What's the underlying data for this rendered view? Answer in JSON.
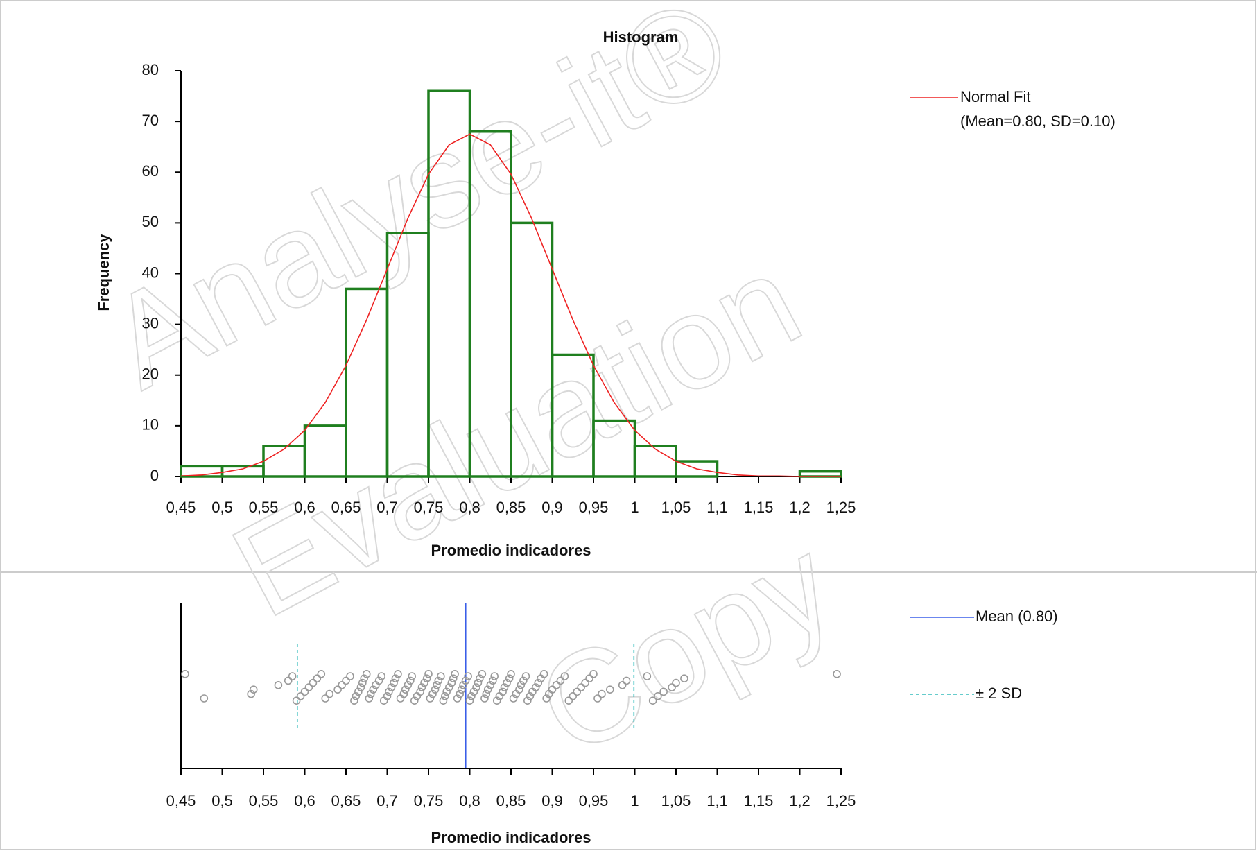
{
  "chart_data": [
    {
      "type": "histogram",
      "title": "Histogram",
      "ylabel": "Frequency",
      "xlabel": "Promedio indicadores",
      "bins": [
        0.45,
        0.5,
        0.55,
        0.6,
        0.65,
        0.7,
        0.75,
        0.8,
        0.85,
        0.9,
        0.95,
        1,
        1.05,
        1.1,
        1.15,
        1.2,
        1.25
      ],
      "counts": [
        2,
        2,
        6,
        10,
        37,
        48,
        76,
        68,
        50,
        24,
        11,
        6,
        3,
        0,
        0,
        1
      ],
      "color": "#1f7f1f",
      "xlim": [
        0.45,
        1.25
      ],
      "xticks": [
        {
          "value": 0.45,
          "label": "0,45"
        },
        {
          "value": 0.5,
          "label": "0,5"
        },
        {
          "value": 0.55,
          "label": "0,55"
        },
        {
          "value": 0.6,
          "label": "0,6"
        },
        {
          "value": 0.65,
          "label": "0,65"
        },
        {
          "value": 0.7,
          "label": "0,7"
        },
        {
          "value": 0.75,
          "label": "0,75"
        },
        {
          "value": 0.8,
          "label": "0,8"
        },
        {
          "value": 0.85,
          "label": "0,85"
        },
        {
          "value": 0.9,
          "label": "0,9"
        },
        {
          "value": 0.95,
          "label": "0,95"
        },
        1,
        {
          "value": 1.05,
          "label": "1,05"
        },
        {
          "value": 1.1,
          "label": "1,1"
        },
        {
          "value": 1.15,
          "label": "1,15"
        },
        {
          "value": 1.2,
          "label": "1,2"
        },
        {
          "value": 1.25,
          "label": "1,25"
        }
      ],
      "ylim": [
        0,
        80
      ],
      "yticks": [
        0,
        10,
        20,
        30,
        40,
        50,
        60,
        70,
        80
      ],
      "normal_fit": {
        "name": "Normal Fit",
        "label": "(Mean=0.80, SD=0.10)",
        "color": "#ee2222",
        "x": [
          0.45,
          0.475,
          0.5,
          0.525,
          0.55,
          0.575,
          0.6,
          0.625,
          0.65,
          0.675,
          0.7,
          0.725,
          0.75,
          0.775,
          0.8,
          0.825,
          0.85,
          0.875,
          0.9,
          0.925,
          0.95,
          0.975,
          1,
          1.025,
          1.05,
          1.075,
          1.1,
          1.125,
          1.15,
          1.175,
          1.2,
          1.225,
          1.25
        ],
        "values": [
          0.1,
          0.3,
          0.8,
          1.5,
          3.0,
          5.4,
          9.1,
          14.6,
          21.9,
          30.9,
          40.9,
          50.9,
          59.6,
          65.4,
          67.5,
          65.4,
          59.6,
          50.9,
          40.9,
          30.9,
          21.9,
          14.6,
          9.1,
          5.4,
          3.0,
          1.5,
          0.8,
          0.3,
          0.1,
          0.1,
          0,
          0,
          0
        ]
      }
    },
    {
      "type": "dot",
      "xlabel": "Promedio indicadores",
      "x": [
        0.455,
        0.478,
        0.535,
        0.538,
        0.568,
        0.58,
        0.585,
        0.59,
        0.595,
        0.6,
        0.605,
        0.61,
        0.615,
        0.62,
        0.625,
        0.63,
        0.64,
        0.645,
        0.65,
        0.655,
        0.66,
        0.662,
        0.665,
        0.668,
        0.67,
        0.672,
        0.675,
        0.678,
        0.68,
        0.683,
        0.686,
        0.69,
        0.693,
        0.696,
        0.7,
        0.702,
        0.705,
        0.708,
        0.71,
        0.713,
        0.716,
        0.72,
        0.722,
        0.725,
        0.728,
        0.73,
        0.733,
        0.736,
        0.74,
        0.742,
        0.745,
        0.748,
        0.75,
        0.752,
        0.755,
        0.758,
        0.76,
        0.762,
        0.765,
        0.768,
        0.77,
        0.772,
        0.775,
        0.778,
        0.78,
        0.782,
        0.785,
        0.788,
        0.79,
        0.792,
        0.795,
        0.798,
        0.8,
        0.802,
        0.805,
        0.808,
        0.81,
        0.812,
        0.815,
        0.818,
        0.82,
        0.822,
        0.825,
        0.828,
        0.83,
        0.833,
        0.836,
        0.84,
        0.842,
        0.845,
        0.848,
        0.85,
        0.853,
        0.856,
        0.86,
        0.862,
        0.865,
        0.868,
        0.87,
        0.873,
        0.876,
        0.88,
        0.883,
        0.886,
        0.89,
        0.893,
        0.896,
        0.9,
        0.905,
        0.91,
        0.915,
        0.92,
        0.925,
        0.93,
        0.935,
        0.94,
        0.945,
        0.95,
        0.955,
        0.96,
        0.97,
        0.985,
        0.99,
        1.015,
        1.022,
        1.028,
        1.035,
        1.045,
        1.05,
        1.06,
        1.245
      ],
      "mean_line": {
        "name": "Mean (0.80)",
        "value": 0.795,
        "color": "#3a5ee8"
      },
      "sd_lines": {
        "name": "± 2 SD",
        "values": [
          0.591,
          0.999
        ],
        "color": "#33bbbb"
      },
      "xlim": [
        0.45,
        1.25
      ],
      "xticks": [
        {
          "value": 0.45,
          "label": "0,45"
        },
        {
          "value": 0.5,
          "label": "0,5"
        },
        {
          "value": 0.55,
          "label": "0,55"
        },
        {
          "value": 0.6,
          "label": "0,6"
        },
        {
          "value": 0.65,
          "label": "0,65"
        },
        {
          "value": 0.7,
          "label": "0,7"
        },
        {
          "value": 0.75,
          "label": "0,75"
        },
        {
          "value": 0.8,
          "label": "0,8"
        },
        {
          "value": 0.85,
          "label": "0,85"
        },
        {
          "value": 0.9,
          "label": "0,9"
        },
        {
          "value": 0.95,
          "label": "0,95"
        },
        1,
        {
          "value": 1.05,
          "label": "1,05"
        },
        {
          "value": 1.1,
          "label": "1,1"
        },
        {
          "value": 1.15,
          "label": "1,15"
        },
        {
          "value": 1.2,
          "label": "1,2"
        },
        {
          "value": 1.25,
          "label": "1,25"
        }
      ]
    }
  ],
  "watermark": [
    "Analyse-it®",
    "Evaluation",
    "Copy"
  ]
}
